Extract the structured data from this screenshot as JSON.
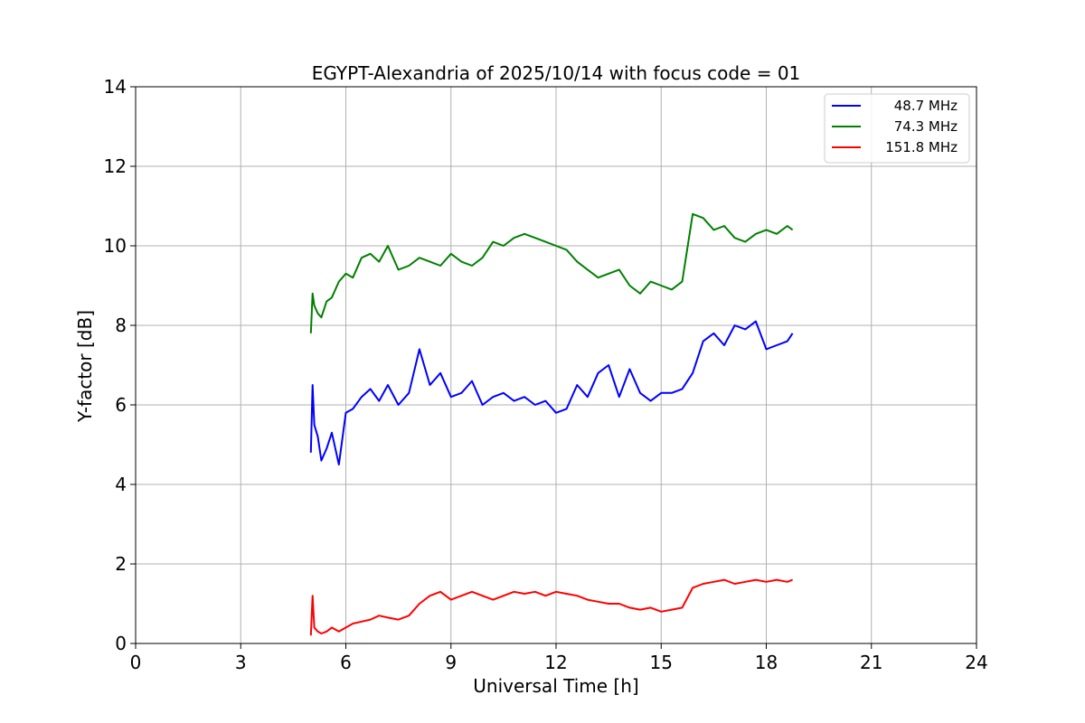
{
  "chart_data": {
    "type": "line",
    "title": "EGYPT-Alexandria of 2025/10/14 with focus code = 01",
    "xlabel": "Universal Time [h]",
    "ylabel": "Y-factor [dB]",
    "xlim": [
      0,
      24
    ],
    "ylim": [
      0,
      14
    ],
    "xticks": [
      0,
      3,
      6,
      9,
      12,
      15,
      18,
      21,
      24
    ],
    "yticks": [
      0,
      2,
      4,
      6,
      8,
      10,
      12,
      14
    ],
    "grid": true,
    "legend_position": "top-right",
    "series": [
      {
        "name": "48.7 MHz",
        "color": "#0000ff",
        "x": [
          5.0,
          5.05,
          5.1,
          5.2,
          5.3,
          5.45,
          5.6,
          5.8,
          6.0,
          6.2,
          6.45,
          6.7,
          6.95,
          7.2,
          7.5,
          7.8,
          8.1,
          8.4,
          8.7,
          9.0,
          9.3,
          9.6,
          9.9,
          10.2,
          10.5,
          10.8,
          11.1,
          11.4,
          11.7,
          12.0,
          12.3,
          12.6,
          12.9,
          13.2,
          13.5,
          13.8,
          14.1,
          14.4,
          14.7,
          15.0,
          15.3,
          15.6,
          15.9,
          16.2,
          16.5,
          16.8,
          17.1,
          17.4,
          17.7,
          18.0,
          18.3,
          18.6,
          18.75
        ],
        "y": [
          4.8,
          6.5,
          5.5,
          5.2,
          4.6,
          4.9,
          5.3,
          4.5,
          5.8,
          5.9,
          6.2,
          6.4,
          6.1,
          6.5,
          6.0,
          6.3,
          7.4,
          6.5,
          6.8,
          6.2,
          6.3,
          6.6,
          6.0,
          6.2,
          6.3,
          6.1,
          6.2,
          6.0,
          6.1,
          5.8,
          5.9,
          6.5,
          6.2,
          6.8,
          7.0,
          6.2,
          6.9,
          6.3,
          6.1,
          6.3,
          6.3,
          6.4,
          6.8,
          7.6,
          7.8,
          7.5,
          8.0,
          7.9,
          8.1,
          7.4,
          7.5,
          7.6,
          7.8
        ]
      },
      {
        "name": "74.3 MHz",
        "color": "#008000",
        "x": [
          5.0,
          5.05,
          5.1,
          5.2,
          5.3,
          5.45,
          5.6,
          5.8,
          6.0,
          6.2,
          6.45,
          6.7,
          6.95,
          7.2,
          7.5,
          7.8,
          8.1,
          8.4,
          8.7,
          9.0,
          9.3,
          9.6,
          9.9,
          10.2,
          10.5,
          10.8,
          11.1,
          11.4,
          11.7,
          12.0,
          12.3,
          12.6,
          12.9,
          13.2,
          13.5,
          13.8,
          14.1,
          14.4,
          14.7,
          15.0,
          15.3,
          15.6,
          15.9,
          16.2,
          16.5,
          16.8,
          17.1,
          17.4,
          17.7,
          18.0,
          18.3,
          18.6,
          18.75
        ],
        "y": [
          7.8,
          8.8,
          8.5,
          8.3,
          8.2,
          8.6,
          8.7,
          9.1,
          9.3,
          9.2,
          9.7,
          9.8,
          9.6,
          10.0,
          9.4,
          9.5,
          9.7,
          9.6,
          9.5,
          9.8,
          9.6,
          9.5,
          9.7,
          10.1,
          10.0,
          10.2,
          10.3,
          10.2,
          10.1,
          10.0,
          9.9,
          9.6,
          9.4,
          9.2,
          9.3,
          9.4,
          9.0,
          8.8,
          9.1,
          9.0,
          8.9,
          9.1,
          10.8,
          10.7,
          10.4,
          10.5,
          10.2,
          10.1,
          10.3,
          10.4,
          10.3,
          10.5,
          10.4
        ]
      },
      {
        "name": "151.8 MHz",
        "color": "#ff0000",
        "x": [
          5.0,
          5.05,
          5.1,
          5.2,
          5.3,
          5.45,
          5.6,
          5.8,
          6.0,
          6.2,
          6.45,
          6.7,
          6.95,
          7.2,
          7.5,
          7.8,
          8.1,
          8.4,
          8.7,
          9.0,
          9.3,
          9.6,
          9.9,
          10.2,
          10.5,
          10.8,
          11.1,
          11.4,
          11.7,
          12.0,
          12.3,
          12.6,
          12.9,
          13.2,
          13.5,
          13.8,
          14.1,
          14.4,
          14.7,
          15.0,
          15.3,
          15.6,
          15.9,
          16.2,
          16.5,
          16.8,
          17.1,
          17.4,
          17.7,
          18.0,
          18.3,
          18.6,
          18.75
        ],
        "y": [
          0.2,
          1.2,
          0.4,
          0.3,
          0.25,
          0.3,
          0.4,
          0.3,
          0.4,
          0.5,
          0.55,
          0.6,
          0.7,
          0.65,
          0.6,
          0.7,
          1.0,
          1.2,
          1.3,
          1.1,
          1.2,
          1.3,
          1.2,
          1.1,
          1.2,
          1.3,
          1.25,
          1.3,
          1.2,
          1.3,
          1.25,
          1.2,
          1.1,
          1.05,
          1.0,
          1.0,
          0.9,
          0.85,
          0.9,
          0.8,
          0.85,
          0.9,
          1.4,
          1.5,
          1.55,
          1.6,
          1.5,
          1.55,
          1.6,
          1.55,
          1.6,
          1.55,
          1.6
        ]
      }
    ]
  }
}
